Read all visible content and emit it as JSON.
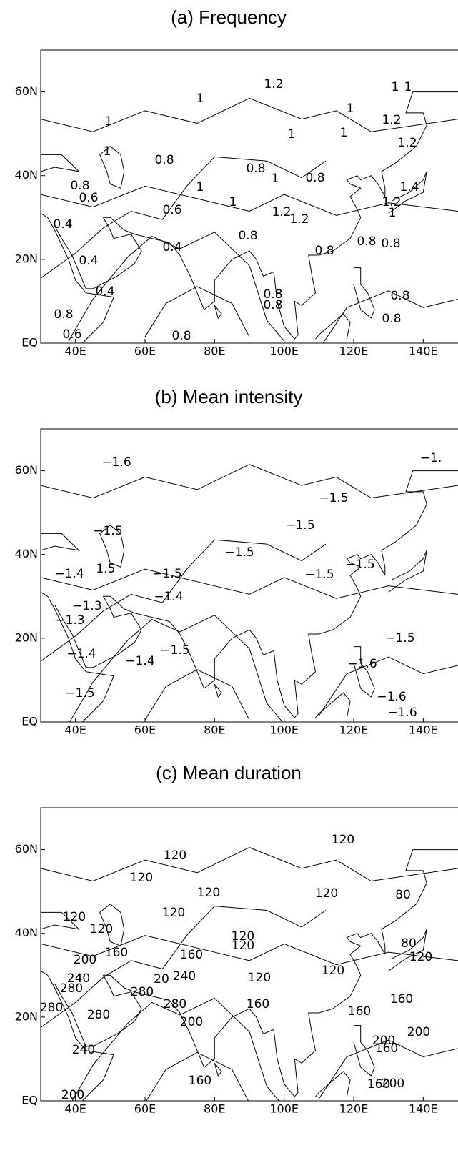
{
  "panels": [
    {
      "title": "(a) Frequency",
      "xlim": [
        30,
        150
      ],
      "ylim": [
        0,
        70
      ],
      "xticks": [
        {
          "value": 40,
          "label": "40E"
        },
        {
          "value": 60,
          "label": "60E"
        },
        {
          "value": 80,
          "label": "80E"
        },
        {
          "value": 100,
          "label": "100E"
        },
        {
          "value": 120,
          "label": "120E"
        },
        {
          "value": 140,
          "label": "140E"
        }
      ],
      "yticks": [
        {
          "value": 0,
          "label": "EQ"
        },
        {
          "value": 20,
          "label": "20N"
        },
        {
          "value": 40,
          "label": "40N"
        },
        {
          "value": 60,
          "label": "60N"
        }
      ],
      "contour_labels": [
        "1.2",
        "1",
        "1",
        "1",
        "1",
        "1.2",
        "1",
        "1",
        "1",
        "1.2",
        "1",
        "0.8",
        "0.8",
        "0.8",
        "1",
        "0.8",
        "1.4",
        "0.6",
        "1",
        "1.2",
        "1",
        "0.6",
        "1.2",
        "1",
        "1.2",
        "0.4",
        "0.8",
        "0.8",
        "0.8",
        "0.8",
        "0.4",
        "0.4",
        "0.4",
        "0.8",
        "0.8",
        "0.8",
        "0.8",
        "0.8",
        "0.6",
        "0.8"
      ]
    },
    {
      "title": "(b) Mean intensity",
      "xlim": [
        30,
        150
      ],
      "ylim": [
        0,
        70
      ],
      "xticks": [
        {
          "value": 40,
          "label": "40E"
        },
        {
          "value": 60,
          "label": "60E"
        },
        {
          "value": 80,
          "label": "80E"
        },
        {
          "value": 100,
          "label": "100E"
        },
        {
          "value": 120,
          "label": "120E"
        },
        {
          "value": 140,
          "label": "140E"
        }
      ],
      "yticks": [
        {
          "value": 0,
          "label": "EQ"
        },
        {
          "value": 20,
          "label": "20N"
        },
        {
          "value": 40,
          "label": "40N"
        },
        {
          "value": 60,
          "label": "60N"
        }
      ],
      "contour_labels": [
        "−1.6",
        "−1.",
        "−1.5",
        "−1.5",
        "−1.5",
        "−1.5",
        "−1.4",
        "1.5",
        "−1.5",
        "−1.5",
        "−1.5",
        "−1.4",
        "−1.3",
        "−1.3",
        "−1.5",
        "−1.4",
        "−1.5",
        "−1.4",
        "−1.6",
        "−1.5",
        "−1.6",
        "−1.6"
      ]
    },
    {
      "title": "(c) Mean duration",
      "xlim": [
        30,
        150
      ],
      "ylim": [
        0,
        70
      ],
      "xticks": [
        {
          "value": 40,
          "label": "40E"
        },
        {
          "value": 60,
          "label": "60E"
        },
        {
          "value": 80,
          "label": "80E"
        },
        {
          "value": 100,
          "label": "100E"
        },
        {
          "value": 120,
          "label": "120E"
        },
        {
          "value": 140,
          "label": "140E"
        }
      ],
      "yticks": [
        {
          "value": 0,
          "label": "EQ"
        },
        {
          "value": 20,
          "label": "20N"
        },
        {
          "value": 40,
          "label": "40N"
        },
        {
          "value": 60,
          "label": "60N"
        }
      ],
      "contour_labels": [
        "120",
        "120",
        "120",
        "120",
        "120",
        "80",
        "120",
        "120",
        "120",
        "120",
        "120",
        "80",
        "200",
        "160",
        "160",
        "120",
        "240",
        "280",
        "240",
        "20",
        "120",
        "120",
        "280",
        "280",
        "160",
        "280",
        "280",
        "160",
        "160",
        "200",
        "200",
        "200",
        "160",
        "240",
        "160",
        "160",
        "200",
        "200"
      ]
    }
  ]
}
